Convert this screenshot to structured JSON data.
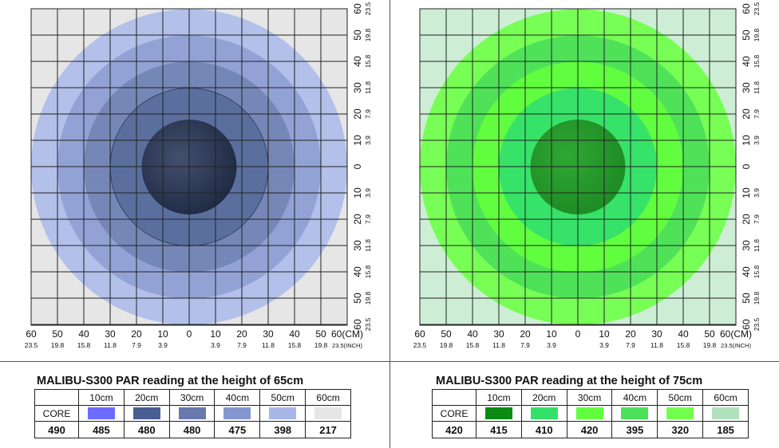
{
  "chart_data": [
    {
      "type": "heatmap",
      "title": "MALIBU-S300 PAR reading at the height of 65cm",
      "x_ticks_cm": [
        "60",
        "50",
        "40",
        "30",
        "20",
        "10",
        "0",
        "10",
        "20",
        "30",
        "40",
        "50",
        "60(CM)"
      ],
      "x_ticks_inch": [
        "23.5",
        "19.8",
        "15.8",
        "11.8",
        "7.9",
        "3.9",
        "",
        "3.9",
        "7.9",
        "11.8",
        "15.8",
        "19.8",
        "23.5(INCH)"
      ],
      "y_ticks_cm": [
        "60",
        "50",
        "40",
        "30",
        "20",
        "10",
        "0",
        "10",
        "20",
        "30",
        "40",
        "50",
        "60"
      ],
      "y_ticks_inch": [
        "23.5",
        "19.8",
        "15.8",
        "11.8",
        "7.9",
        "3.9",
        "",
        "3.9",
        "7.9",
        "11.8",
        "15.8",
        "19.8",
        "23.5"
      ],
      "legend_header": [
        "",
        "10cm",
        "20cm",
        "30cm",
        "40cm",
        "50cm",
        "60cm"
      ],
      "legend_row_label": "CORE",
      "zones": [
        "CORE",
        "10cm",
        "20cm",
        "30cm",
        "40cm",
        "50cm",
        "60cm"
      ],
      "values": [
        "490",
        "485",
        "480",
        "480",
        "475",
        "398",
        "217"
      ],
      "colors": [
        "#1f2a44",
        "#6b6bff",
        "#4a5f91",
        "#6779ad",
        "#8597cf",
        "#a7b7e8",
        "#e6e6e6"
      ],
      "background": "#e6e6e6",
      "radii_cm": [
        18,
        30,
        40,
        50,
        60
      ]
    },
    {
      "type": "heatmap",
      "title": "MALIBU-S300 PAR reading at the height of 75cm",
      "x_ticks_cm": [
        "60",
        "50",
        "40",
        "30",
        "20",
        "10",
        "0",
        "10",
        "20",
        "30",
        "40",
        "50",
        "60(CM)"
      ],
      "x_ticks_inch": [
        "23.5",
        "19.8",
        "15.8",
        "11.8",
        "7.9",
        "3.9",
        "",
        "3.9",
        "7.9",
        "11.8",
        "15.8",
        "19.8",
        "23.5(INCH)"
      ],
      "y_ticks_cm": [
        "60",
        "50",
        "40",
        "30",
        "20",
        "10",
        "0",
        "10",
        "20",
        "30",
        "40",
        "50",
        "60"
      ],
      "y_ticks_inch": [
        "23.5",
        "19.8",
        "15.8",
        "11.8",
        "7.9",
        "3.9",
        "",
        "3.9",
        "7.9",
        "11.8",
        "15.8",
        "19.8",
        "23.5"
      ],
      "legend_header": [
        "",
        "10cm",
        "20cm",
        "30cm",
        "40cm",
        "50cm",
        "60cm"
      ],
      "legend_row_label": "CORE",
      "zones": [
        "CORE",
        "10cm",
        "20cm",
        "30cm",
        "40cm",
        "50cm",
        "60cm"
      ],
      "values": [
        "420",
        "415",
        "410",
        "420",
        "395",
        "320",
        "185"
      ],
      "colors": [
        "#1e8a23",
        "#0a8c12",
        "#35e06a",
        "#62ff3e",
        "#4de05a",
        "#72ff4e",
        "#b2e1be"
      ],
      "background": "#cdeed5",
      "radii_cm": [
        18,
        30,
        40,
        50,
        60
      ]
    }
  ]
}
